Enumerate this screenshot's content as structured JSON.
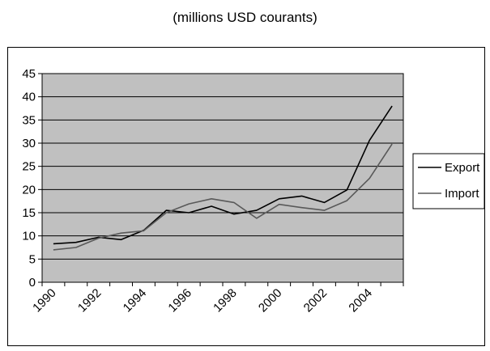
{
  "chart_data": {
    "type": "line",
    "title": "(millions USD courants)",
    "xlabel": "",
    "ylabel": "",
    "x": [
      1990,
      1991,
      1992,
      1993,
      1994,
      1995,
      1996,
      1997,
      1998,
      1999,
      2000,
      2001,
      2002,
      2003,
      2004,
      2005
    ],
    "x_tick_labels": [
      "1990",
      "1992",
      "1994",
      "1996",
      "1998",
      "2000",
      "2002",
      "2004"
    ],
    "ylim": [
      0,
      45
    ],
    "y_ticks": [
      0,
      5,
      10,
      15,
      20,
      25,
      30,
      35,
      40,
      45
    ],
    "grid": true,
    "plot_background": "#c0c0c0",
    "legend_position": "right",
    "series": [
      {
        "name": "Export",
        "color": "#000000",
        "values": [
          8.3,
          8.6,
          9.7,
          9.2,
          11.2,
          15.5,
          15.0,
          16.4,
          14.7,
          15.5,
          18.0,
          18.6,
          17.2,
          19.9,
          30.6,
          38.0
        ]
      },
      {
        "name": "Import",
        "color": "#595959",
        "values": [
          7.0,
          7.5,
          9.5,
          10.6,
          11.1,
          15.0,
          16.9,
          18.0,
          17.2,
          13.8,
          16.8,
          16.1,
          15.5,
          17.6,
          22.4,
          29.8
        ]
      }
    ]
  }
}
